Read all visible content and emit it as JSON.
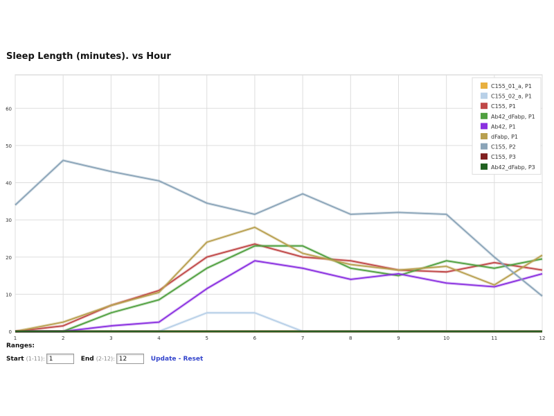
{
  "chart_data": {
    "type": "line",
    "title": "Sleep Length (minutes). vs Hour",
    "x": [
      1,
      2,
      3,
      4,
      5,
      6,
      7,
      8,
      9,
      10,
      11,
      12
    ],
    "xlim": [
      1,
      12
    ],
    "xticks": [
      1,
      2,
      3,
      4,
      5,
      6,
      7,
      8,
      9,
      10,
      11,
      12
    ],
    "ylim": [
      0,
      69
    ],
    "yticks": [
      0,
      10,
      20,
      30,
      40,
      50,
      60
    ],
    "grid": true,
    "legend": "top-right",
    "series": [
      {
        "name": "C155_01_a, P1",
        "color": "#e8b040",
        "values": [
          0,
          0,
          0,
          0,
          0,
          0,
          0,
          0,
          0,
          0,
          0,
          0
        ]
      },
      {
        "name": "C155_02_a, P1",
        "color": "#b8d0e8",
        "values": [
          0,
          0,
          0,
          0,
          5,
          5,
          0,
          0,
          0,
          0,
          0,
          0
        ]
      },
      {
        "name": "C155, P1",
        "color": "#c04848",
        "values": [
          0,
          1.5,
          7,
          11,
          20,
          23.5,
          20,
          19,
          16.5,
          16,
          18.5,
          16.5
        ]
      },
      {
        "name": "Ab42_dFabp, P1",
        "color": "#50a040",
        "values": [
          0,
          0,
          5,
          8.5,
          17,
          23,
          23,
          17,
          15,
          19,
          17,
          19.5
        ]
      },
      {
        "name": "Ab42, P1",
        "color": "#8a30e0",
        "values": [
          0,
          0,
          1.5,
          2.5,
          11.5,
          19,
          17,
          14,
          15.5,
          13,
          12,
          15.5
        ]
      },
      {
        "name": "dFabp, P1",
        "color": "#b8a050",
        "values": [
          0,
          2.5,
          7,
          10.5,
          24,
          28,
          21,
          18,
          16.5,
          17.5,
          12.5,
          20.5
        ]
      },
      {
        "name": "C155, P2",
        "color": "#8aa4b8",
        "values": [
          34,
          46,
          43,
          40.5,
          34.5,
          31.5,
          37,
          31.5,
          32,
          31.5,
          20,
          9.5
        ]
      },
      {
        "name": "C155, P3",
        "color": "#802020",
        "values": [
          0,
          0,
          0,
          0,
          0,
          0,
          0,
          0,
          0,
          0,
          0,
          0
        ]
      },
      {
        "name": "Ab42_dFabp, P3",
        "color": "#206020",
        "values": [
          0,
          0,
          0,
          0,
          0,
          0,
          0,
          0,
          0,
          0,
          0,
          0
        ]
      }
    ]
  },
  "controls": {
    "ranges_label": "Ranges:",
    "start_label": "Start",
    "start_hint": "(1-11):",
    "start_value": "1",
    "end_label": "End",
    "end_hint": "(2-12):",
    "end_value": "12",
    "links": "Update - Reset"
  }
}
